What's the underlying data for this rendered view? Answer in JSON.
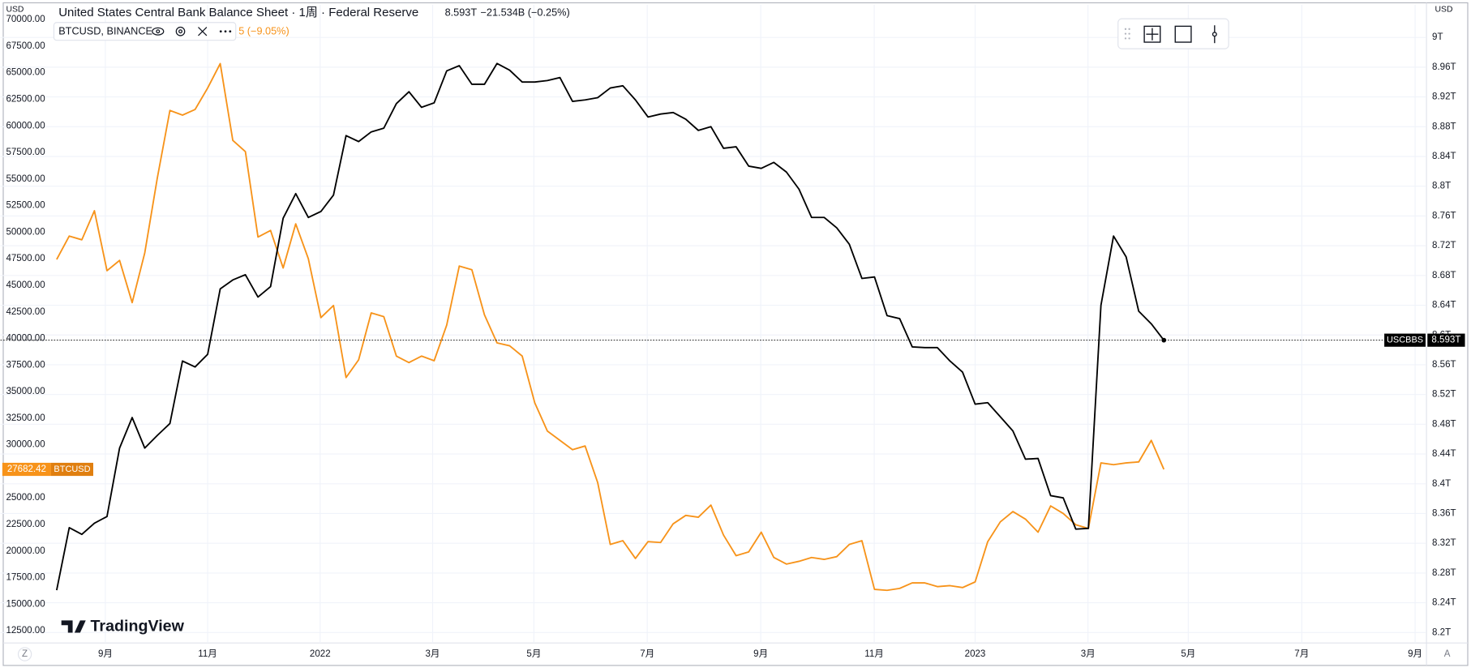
{
  "chart_data": {
    "type": "line",
    "title": "United States Central Bank Balance Sheet · 1周 · Federal Reserve",
    "title_value": "8.593T",
    "title_change": "−21.534B (−0.25%)",
    "subtitle": "BTCUSD, BINANCE",
    "subtitle_change": "5 (−9.05%)",
    "y_unit_label": "USD",
    "y2_unit_label": "USD",
    "logo": "TradingView",
    "corner_left": "Z",
    "corner_right": "A",
    "grid": true,
    "categories": [
      null,
      null,
      null,
      null,
      null,
      null,
      null,
      null,
      null,
      null,
      null,
      null,
      null,
      null,
      null,
      null,
      null,
      null,
      null,
      null,
      null,
      null,
      null,
      null,
      null,
      null,
      null,
      null,
      null,
      null,
      null,
      null,
      null,
      null,
      null,
      null,
      null,
      null,
      null,
      null,
      null,
      null,
      null,
      null,
      null,
      null,
      null,
      null,
      null,
      null,
      null,
      null,
      null,
      null,
      null,
      null,
      null,
      null,
      null,
      null,
      null,
      null,
      null,
      null,
      null,
      null,
      null,
      null,
      null,
      null,
      null,
      null,
      null,
      null,
      null,
      null,
      null,
      null,
      null,
      null,
      null,
      null,
      null,
      null,
      null,
      null,
      null,
      null,
      null
    ],
    "xlim": [
      -4.47,
      108.8
    ],
    "xticks": [
      {
        "value": 3.87,
        "label": "9月"
      },
      {
        "value": 12.0,
        "label": "11月"
      },
      {
        "value": 20.94,
        "label": "2022"
      },
      {
        "value": 29.88,
        "label": "3月"
      },
      {
        "value": 37.93,
        "label": "5月"
      },
      {
        "value": 46.94,
        "label": "7月"
      },
      {
        "value": 55.96,
        "label": "9月"
      },
      {
        "value": 64.98,
        "label": "11月"
      },
      {
        "value": 73.0,
        "label": "2023"
      },
      {
        "value": 81.97,
        "label": "3月"
      },
      {
        "value": 89.94,
        "label": "5月"
      },
      {
        "value": 98.96,
        "label": "7月"
      },
      {
        "value": 107.97,
        "label": "9月"
      }
    ],
    "ylim": [
      11350,
      71400
    ],
    "yticks": [
      {
        "value": 12500,
        "label": "12500.00"
      },
      {
        "value": 15000,
        "label": "15000.00"
      },
      {
        "value": 17500,
        "label": "17500.00"
      },
      {
        "value": 20000,
        "label": "20000.00"
      },
      {
        "value": 22500,
        "label": "22500.00"
      },
      {
        "value": 25000,
        "label": "25000.00"
      },
      {
        "value": 27500,
        "label": "27500.00"
      },
      {
        "value": 30000,
        "label": "30000.00"
      },
      {
        "value": 32500,
        "label": "32500.00"
      },
      {
        "value": 35000,
        "label": "35000.00"
      },
      {
        "value": 37500,
        "label": "37500.00"
      },
      {
        "value": 40000,
        "label": "40000.00"
      },
      {
        "value": 42500,
        "label": "42500.00"
      },
      {
        "value": 45000,
        "label": "45000.00"
      },
      {
        "value": 47500,
        "label": "47500.00"
      },
      {
        "value": 50000,
        "label": "50000.00"
      },
      {
        "value": 52500,
        "label": "52500.00"
      },
      {
        "value": 55000,
        "label": "55000.00"
      },
      {
        "value": 57500,
        "label": "57500.00"
      },
      {
        "value": 60000,
        "label": "60000.00"
      },
      {
        "value": 62500,
        "label": "62500.00"
      },
      {
        "value": 65000,
        "label": "65000.00"
      },
      {
        "value": 67500,
        "label": "67500.00"
      },
      {
        "value": 70000,
        "label": "70000.00"
      }
    ],
    "y2lim": [
      8.186,
      9.044
    ],
    "y2ticks": [
      {
        "value": 8.2,
        "label": "8.2T"
      },
      {
        "value": 8.24,
        "label": "8.24T"
      },
      {
        "value": 8.28,
        "label": "8.28T"
      },
      {
        "value": 8.32,
        "label": "8.32T"
      },
      {
        "value": 8.36,
        "label": "8.36T"
      },
      {
        "value": 8.4,
        "label": "8.4T"
      },
      {
        "value": 8.44,
        "label": "8.44T"
      },
      {
        "value": 8.48,
        "label": "8.48T"
      },
      {
        "value": 8.52,
        "label": "8.52T"
      },
      {
        "value": 8.56,
        "label": "8.56T"
      },
      {
        "value": 8.6,
        "label": "8.6T"
      },
      {
        "value": 8.64,
        "label": "8.64T"
      },
      {
        "value": 8.68,
        "label": "8.68T"
      },
      {
        "value": 8.72,
        "label": "8.72T"
      },
      {
        "value": 8.76,
        "label": "8.76T"
      },
      {
        "value": 8.8,
        "label": "8.8T"
      },
      {
        "value": 8.84,
        "label": "8.84T"
      },
      {
        "value": 8.88,
        "label": "8.88T"
      },
      {
        "value": 8.92,
        "label": "8.92T"
      },
      {
        "value": 8.96,
        "label": "8.96T"
      },
      {
        "value": 9,
        "label": "9T"
      }
    ],
    "series": [
      {
        "name": "BTCUSD",
        "color": "#f7931a",
        "axis": "y",
        "values": [
          47430,
          49630,
          49280,
          52010,
          46370,
          47340,
          43370,
          48040,
          55100,
          61450,
          61010,
          61540,
          63560,
          65860,
          58630,
          57570,
          49540,
          50160,
          46630,
          50780,
          47510,
          41960,
          43100,
          36320,
          37990,
          42400,
          42050,
          38340,
          37730,
          38340,
          37900,
          41250,
          46810,
          46460,
          42220,
          39580,
          39310,
          38340,
          33940,
          31290,
          30410,
          29530,
          29880,
          26440,
          20620,
          20970,
          19300,
          20880,
          20800,
          22560,
          23350,
          23180,
          24320,
          21500,
          19560,
          19910,
          21770,
          19390,
          18770,
          19030,
          19390,
          19210,
          19470,
          20620,
          20970,
          16390,
          16300,
          16480,
          17000,
          17000,
          16650,
          16740,
          16560,
          17090,
          20880,
          22740,
          23710,
          23000,
          21770,
          24240,
          23530,
          22470,
          22120,
          28290,
          28120,
          28290,
          28380,
          30410,
          27682.42
        ]
      },
      {
        "name": "USCBBS",
        "color": "#000000",
        "axis": "y2",
        "value_labels_last": "8.593T",
        "values": [
          8.257,
          8.341,
          8.332,
          8.347,
          8.356,
          8.448,
          8.489,
          8.448,
          8.465,
          8.481,
          8.565,
          8.557,
          8.574,
          8.662,
          8.674,
          8.681,
          8.651,
          8.665,
          8.757,
          8.79,
          8.758,
          8.766,
          8.788,
          8.868,
          8.86,
          8.873,
          8.878,
          8.911,
          8.927,
          8.906,
          8.912,
          8.955,
          8.962,
          8.937,
          8.937,
          8.965,
          8.956,
          8.94,
          8.94,
          8.942,
          8.946,
          8.914,
          8.916,
          8.919,
          8.932,
          8.935,
          8.916,
          8.893,
          8.897,
          8.899,
          8.89,
          8.875,
          8.88,
          8.851,
          8.853,
          8.827,
          8.824,
          8.832,
          8.819,
          8.796,
          8.758,
          8.758,
          8.744,
          8.722,
          8.676,
          8.678,
          8.626,
          8.622,
          8.584,
          8.583,
          8.583,
          8.565,
          8.55,
          8.507,
          8.509,
          8.49,
          8.471,
          8.433,
          8.434,
          8.384,
          8.381,
          8.339,
          8.34,
          8.64,
          8.733,
          8.705,
          8.632,
          8.615,
          8.593
        ]
      }
    ]
  }
}
